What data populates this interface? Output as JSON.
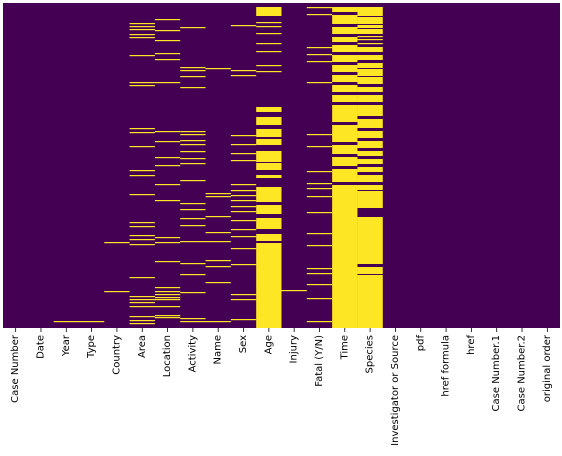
{
  "chart_data": {
    "type": "heatmap",
    "title": "",
    "xlabel": "",
    "ylabel": "",
    "colorbar": false,
    "colors": {
      "present": "#440154",
      "missing": "#fde725"
    },
    "columns": [
      "Case Number",
      "Date",
      "Year",
      "Type",
      "Country",
      "Area",
      "Location",
      "Activity",
      "Name",
      "Sex",
      "Age",
      "Injury",
      "Fatal (Y/N)",
      "Time",
      "Species",
      "Investigator or Source",
      "pdf",
      "href formula",
      "href",
      "Case Number.1",
      "Case Number.2",
      "original order"
    ],
    "missing_rows": [
      [],
      [],
      [
        318
      ],
      [
        318
      ],
      [
        288,
        239
      ],
      [
        20,
        23,
        26,
        31,
        34,
        52,
        79,
        82,
        125,
        129,
        143,
        167,
        172,
        191,
        219,
        223,
        232,
        236,
        241,
        274,
        293,
        296,
        299,
        303,
        313,
        317,
        320
      ],
      [
        16,
        27,
        37,
        50,
        56,
        79,
        128,
        138,
        154,
        162,
        181,
        197,
        234,
        239,
        258,
        284,
        288,
        291,
        294,
        296,
        303,
        312,
        314
      ],
      [
        24,
        64,
        67,
        73,
        84,
        128,
        131,
        137,
        141,
        148,
        155,
        160,
        177,
        200,
        206,
        215,
        222,
        238,
        260,
        271,
        289,
        315,
        318
      ],
      [
        65,
        190,
        193,
        213,
        229,
        238,
        257,
        263,
        279,
        318
      ],
      [
        22,
        67,
        72,
        132,
        141,
        150,
        157,
        181,
        187,
        192,
        197,
        203,
        208,
        217,
        226,
        233,
        245,
        261,
        291,
        296,
        316
      ],
      [
        [
          4,
          12
        ],
        19,
        23,
        30,
        40,
        48,
        62,
        68,
        [
          104,
          108
        ],
        [
          114,
          121
        ],
        [
          126,
          133
        ],
        [
          136,
          141
        ],
        [
          148,
          158
        ],
        [
          160,
          166
        ],
        [
          172,
          174
        ],
        [
          184,
          198
        ],
        [
          202,
          210
        ],
        [
          215,
          225
        ],
        [
          231,
          237
        ],
        [
          240,
          324
        ]
      ],
      [
        287
      ],
      [
        4,
        11,
        44,
        51,
        58,
        79,
        131,
        143,
        168,
        180,
        185,
        193,
        209,
        230,
        242,
        265,
        270,
        281,
        295,
        318
      ],
      [
        [
          4,
          8
        ],
        [
          12,
          20
        ],
        [
          24,
          30
        ],
        [
          34,
          38
        ],
        [
          42,
          48
        ],
        [
          52,
          58
        ],
        [
          62,
          68
        ],
        [
          72,
          78
        ],
        [
          82,
          88
        ],
        [
          92,
          98
        ],
        [
          102,
          118
        ],
        [
          122,
          138
        ],
        [
          142,
          150
        ],
        [
          154,
          162
        ],
        [
          166,
          178
        ],
        [
          182,
          324
        ]
      ],
      [
        [
          4,
          12
        ],
        [
          14,
          20
        ],
        [
          22,
          24
        ],
        [
          26,
          30
        ],
        33,
        36,
        40,
        [
          44,
          48
        ],
        [
          52,
          56
        ],
        [
          60,
          64
        ],
        [
          66,
          72
        ],
        [
          74,
          80
        ],
        [
          84,
          88
        ],
        [
          92,
          98
        ],
        [
          102,
          112
        ],
        [
          116,
          124
        ],
        [
          128,
          134
        ],
        [
          138,
          144
        ],
        [
          148,
          152
        ],
        [
          156,
          160
        ],
        [
          164,
          168
        ],
        [
          172,
          178
        ],
        [
          182,
          186
        ],
        [
          188,
          204
        ],
        [
          214,
          260
        ],
        [
          264,
          270
        ],
        [
          272,
          324
        ]
      ],
      [],
      [],
      [],
      [],
      [],
      [],
      []
    ]
  }
}
